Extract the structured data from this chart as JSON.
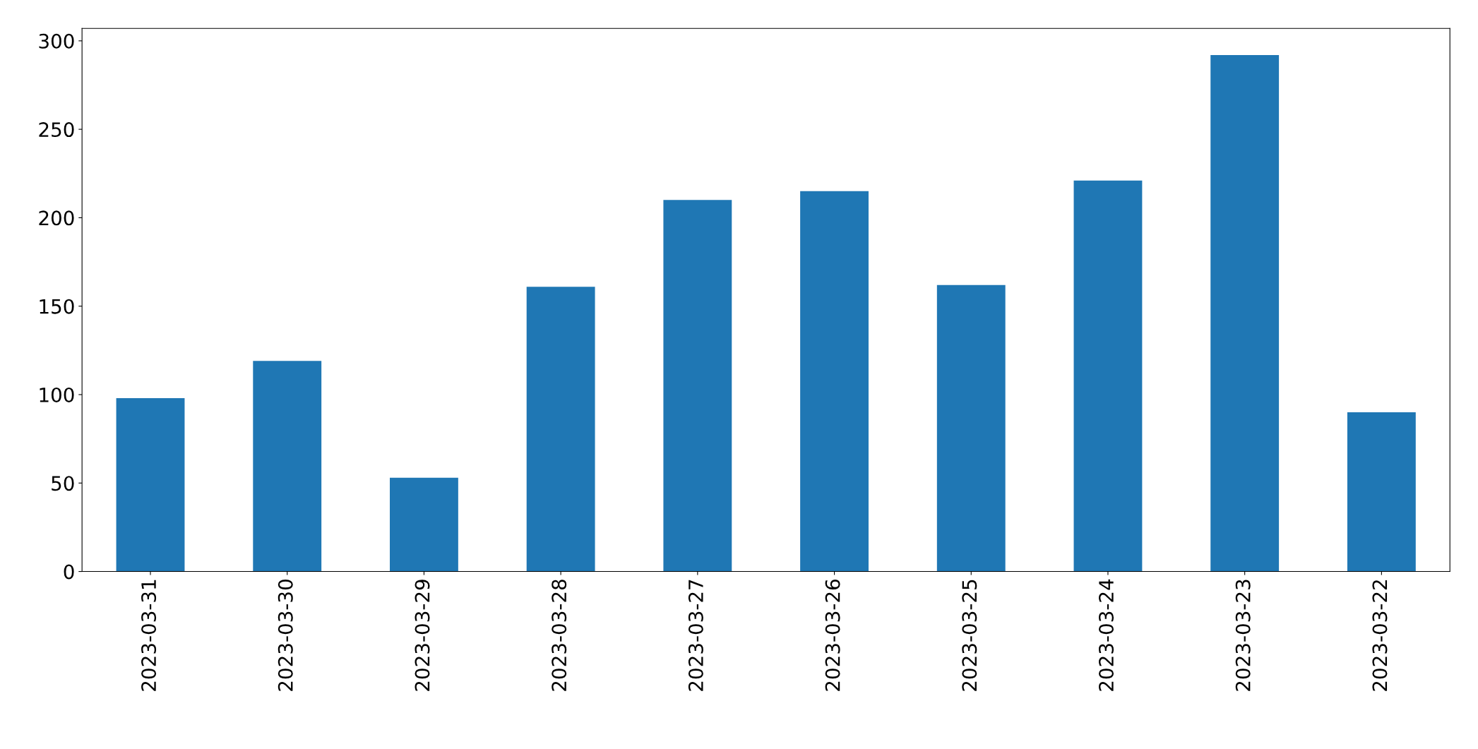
{
  "chart_data": {
    "type": "bar",
    "categories": [
      "2023-03-31",
      "2023-03-30",
      "2023-03-29",
      "2023-03-28",
      "2023-03-27",
      "2023-03-26",
      "2023-03-25",
      "2023-03-24",
      "2023-03-23",
      "2023-03-22"
    ],
    "values": [
      98,
      119,
      53,
      161,
      210,
      215,
      162,
      221,
      292,
      90
    ],
    "color": "#1f77b4",
    "ylim": [
      0,
      307
    ],
    "yticks": [
      0,
      50,
      100,
      150,
      200,
      250,
      300
    ],
    "grid": false,
    "legend": false
  }
}
